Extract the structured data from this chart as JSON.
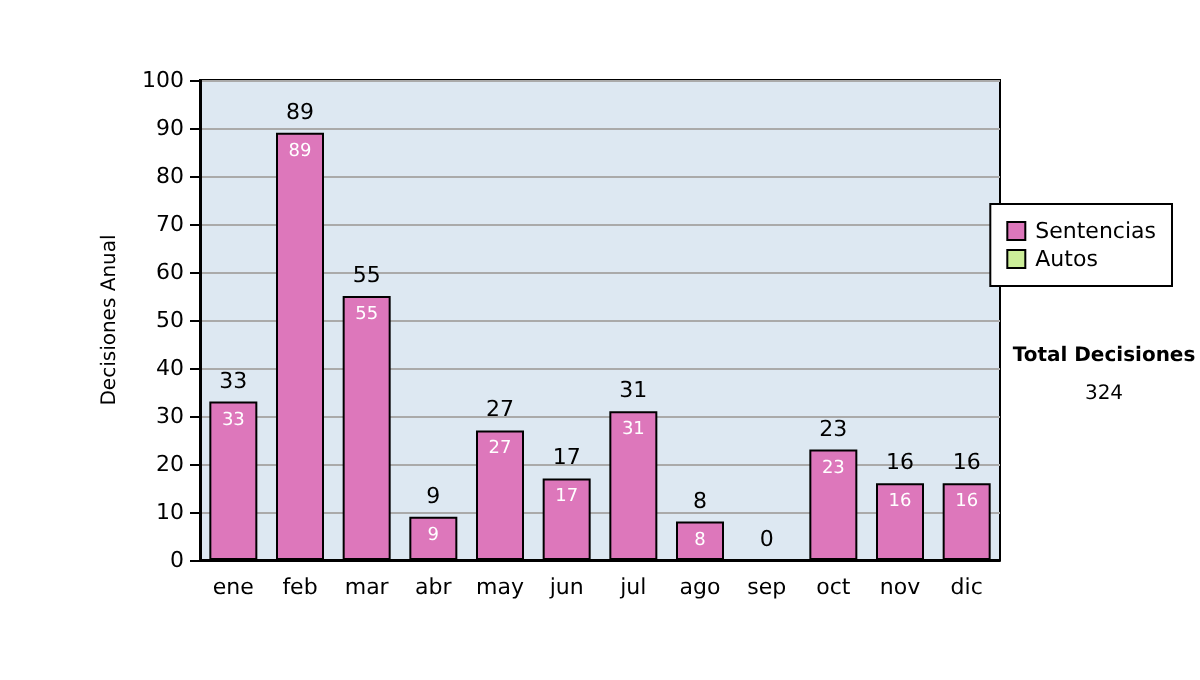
{
  "chart_data": {
    "type": "bar",
    "stacked": true,
    "ylabel": "Decisiones Anual",
    "categories": [
      "ene",
      "feb",
      "mar",
      "abr",
      "may",
      "jun",
      "jul",
      "ago",
      "sep",
      "oct",
      "nov",
      "dic"
    ],
    "series": [
      {
        "name": "Sentencias",
        "color": "#dd77bb",
        "values": [
          33,
          89,
          55,
          9,
          27,
          17,
          31,
          8,
          0,
          23,
          16,
          16
        ],
        "value_labels": [
          "33",
          "89",
          "55",
          "9",
          "27",
          "17",
          "31",
          "8",
          null,
          "23",
          "16",
          "16"
        ]
      },
      {
        "name": "Autos",
        "color": "#ccee99",
        "values": [
          0,
          0,
          0,
          0,
          0,
          0,
          0,
          0,
          0,
          0,
          0,
          0
        ]
      }
    ],
    "totals": [
      "33",
      "89",
      "55",
      "9",
      "27",
      "17",
      "31",
      "8",
      "0",
      "23",
      "16",
      "16"
    ],
    "ylim": [
      0,
      100
    ],
    "yticks": [
      0,
      10,
      20,
      30,
      40,
      50,
      60,
      70,
      80,
      90,
      100
    ],
    "grid": "y",
    "legend": "right",
    "annotations": [
      "Total Decisiones",
      "324"
    ]
  }
}
